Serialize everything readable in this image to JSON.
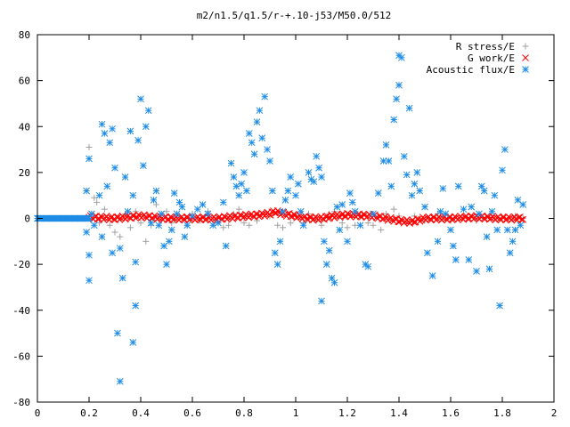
{
  "chart_data": {
    "type": "scatter",
    "title": "m2/n1.5/q1.5/r-+.10-j53/M50.0/512",
    "xlabel": "",
    "ylabel": "",
    "xlim": [
      0,
      2
    ],
    "ylim": [
      -80,
      80
    ],
    "x_ticks": [
      0,
      0.2,
      0.4,
      0.6,
      0.8,
      1,
      1.2,
      1.4,
      1.6,
      1.8,
      2
    ],
    "x_tick_labels": [
      "0",
      "0.2",
      "0.4",
      "0.6",
      "0.8",
      "1",
      "1.2",
      "1.4",
      "1.6",
      "1.8",
      "2"
    ],
    "y_ticks": [
      -80,
      -60,
      -40,
      -20,
      0,
      20,
      40,
      60,
      80
    ],
    "y_tick_labels": [
      "-80",
      "-60",
      "-40",
      "-20",
      "0",
      "20",
      "40",
      "60",
      "80"
    ],
    "grid": false,
    "legend_position": "top-right",
    "series": [
      {
        "name": "R stress/E",
        "marker": "plus",
        "color": "#a0a0a0",
        "points": [
          [
            0.2,
            31
          ],
          [
            0.21,
            2
          ],
          [
            0.22,
            9
          ],
          [
            0.23,
            7
          ],
          [
            0.24,
            -2
          ],
          [
            0.26,
            4
          ],
          [
            0.28,
            -3
          ],
          [
            0.3,
            -6
          ],
          [
            0.32,
            -8
          ],
          [
            0.34,
            2
          ],
          [
            0.36,
            -4
          ],
          [
            0.38,
            3
          ],
          [
            0.4,
            -2
          ],
          [
            0.42,
            -10
          ],
          [
            0.44,
            -3
          ],
          [
            0.46,
            6
          ],
          [
            0.48,
            -1
          ],
          [
            0.5,
            3
          ],
          [
            0.52,
            -2
          ],
          [
            0.55,
            1
          ],
          [
            0.58,
            -3
          ],
          [
            0.6,
            2
          ],
          [
            0.63,
            -1
          ],
          [
            0.66,
            3
          ],
          [
            0.7,
            -2
          ],
          [
            0.72,
            -4
          ],
          [
            0.74,
            -3
          ],
          [
            0.76,
            2
          ],
          [
            0.78,
            4
          ],
          [
            0.8,
            -2
          ],
          [
            0.82,
            -3
          ],
          [
            0.85,
            -1
          ],
          [
            0.88,
            2
          ],
          [
            0.9,
            1
          ],
          [
            0.93,
            -3
          ],
          [
            0.95,
            -4
          ],
          [
            0.98,
            -2
          ],
          [
            1.0,
            1
          ],
          [
            1.03,
            -2
          ],
          [
            1.05,
            2
          ],
          [
            1.08,
            -1
          ],
          [
            1.1,
            -3
          ],
          [
            1.13,
            2
          ],
          [
            1.15,
            3
          ],
          [
            1.18,
            -2
          ],
          [
            1.2,
            -4
          ],
          [
            1.23,
            -3
          ],
          [
            1.25,
            1
          ],
          [
            1.28,
            -2
          ],
          [
            1.3,
            -3
          ],
          [
            1.33,
            -5
          ],
          [
            1.35,
            2
          ],
          [
            1.38,
            4
          ],
          [
            1.4,
            1
          ],
          [
            1.43,
            -2
          ],
          [
            1.46,
            1
          ],
          [
            1.5,
            -1
          ],
          [
            1.55,
            2
          ],
          [
            1.6,
            -1
          ],
          [
            1.65,
            1
          ],
          [
            1.7,
            -1
          ],
          [
            1.75,
            1
          ],
          [
            1.8,
            0
          ],
          [
            1.85,
            1
          ],
          [
            1.88,
            0
          ]
        ]
      },
      {
        "name": "G work/E",
        "marker": "cross",
        "color": "#ff0000",
        "x_range": [
          0.2,
          1.88
        ],
        "count": 300,
        "profile": [
          [
            0.2,
            0.5
          ],
          [
            0.3,
            0
          ],
          [
            0.4,
            1
          ],
          [
            0.5,
            0
          ],
          [
            0.6,
            0
          ],
          [
            0.7,
            0
          ],
          [
            0.8,
            1
          ],
          [
            0.86,
            1.5
          ],
          [
            0.9,
            2
          ],
          [
            0.92,
            3
          ],
          [
            0.95,
            2
          ],
          [
            1.0,
            1
          ],
          [
            1.05,
            0
          ],
          [
            1.1,
            0
          ],
          [
            1.15,
            1
          ],
          [
            1.2,
            1.5
          ],
          [
            1.3,
            1
          ],
          [
            1.4,
            -1
          ],
          [
            1.45,
            -1.5
          ],
          [
            1.5,
            0
          ],
          [
            1.6,
            0
          ],
          [
            1.7,
            0.5
          ],
          [
            1.8,
            0
          ],
          [
            1.88,
            0
          ]
        ]
      },
      {
        "name": "Acoustic flux/E",
        "marker": "asterisk",
        "color": "#1e8ce6",
        "baseline": {
          "x_range": [
            0,
            0.2
          ],
          "y": 0,
          "count": 50
        },
        "points": [
          [
            0.19,
            12
          ],
          [
            0.2,
            26
          ],
          [
            0.2,
            -16
          ],
          [
            0.19,
            -6
          ],
          [
            0.2,
            -27
          ],
          [
            0.21,
            2
          ],
          [
            0.22,
            -3
          ],
          [
            0.24,
            10
          ],
          [
            0.25,
            41
          ],
          [
            0.26,
            37
          ],
          [
            0.25,
            -8
          ],
          [
            0.27,
            14
          ],
          [
            0.28,
            33
          ],
          [
            0.29,
            39
          ],
          [
            0.3,
            22
          ],
          [
            0.29,
            -15
          ],
          [
            0.31,
            -50
          ],
          [
            0.32,
            -71
          ],
          [
            0.33,
            -26
          ],
          [
            0.32,
            -13
          ],
          [
            0.34,
            18
          ],
          [
            0.35,
            3
          ],
          [
            0.36,
            38
          ],
          [
            0.37,
            10
          ],
          [
            0.37,
            -54
          ],
          [
            0.38,
            -38
          ],
          [
            0.38,
            -19
          ],
          [
            0.39,
            34
          ],
          [
            0.4,
            52
          ],
          [
            0.41,
            23
          ],
          [
            0.42,
            40
          ],
          [
            0.43,
            47
          ],
          [
            0.44,
            -2
          ],
          [
            0.45,
            8
          ],
          [
            0.46,
            12
          ],
          [
            0.47,
            -3
          ],
          [
            0.48,
            2
          ],
          [
            0.49,
            -12
          ],
          [
            0.5,
            -20
          ],
          [
            0.51,
            -10
          ],
          [
            0.52,
            -5
          ],
          [
            0.53,
            11
          ],
          [
            0.54,
            2
          ],
          [
            0.55,
            7
          ],
          [
            0.56,
            5
          ],
          [
            0.57,
            -8
          ],
          [
            0.58,
            -3
          ],
          [
            0.6,
            1
          ],
          [
            0.62,
            4
          ],
          [
            0.64,
            6
          ],
          [
            0.66,
            2
          ],
          [
            0.68,
            -3
          ],
          [
            0.7,
            -2
          ],
          [
            0.72,
            7
          ],
          [
            0.73,
            -12
          ],
          [
            0.75,
            24
          ],
          [
            0.76,
            18
          ],
          [
            0.77,
            14
          ],
          [
            0.78,
            10
          ],
          [
            0.79,
            15
          ],
          [
            0.8,
            20
          ],
          [
            0.81,
            12
          ],
          [
            0.82,
            37
          ],
          [
            0.83,
            33
          ],
          [
            0.84,
            28
          ],
          [
            0.85,
            42
          ],
          [
            0.86,
            47
          ],
          [
            0.87,
            35
          ],
          [
            0.88,
            53
          ],
          [
            0.89,
            30
          ],
          [
            0.9,
            25
          ],
          [
            0.91,
            12
          ],
          [
            0.92,
            -15
          ],
          [
            0.93,
            -20
          ],
          [
            0.94,
            -10
          ],
          [
            0.95,
            3
          ],
          [
            0.96,
            8
          ],
          [
            0.97,
            12
          ],
          [
            0.98,
            18
          ],
          [
            1.0,
            10
          ],
          [
            1.01,
            15
          ],
          [
            1.02,
            3
          ],
          [
            1.03,
            -3
          ],
          [
            1.05,
            20
          ],
          [
            1.06,
            17
          ],
          [
            1.07,
            16
          ],
          [
            1.08,
            27
          ],
          [
            1.09,
            22
          ],
          [
            1.1,
            18
          ],
          [
            1.1,
            -36
          ],
          [
            1.11,
            -10
          ],
          [
            1.12,
            -20
          ],
          [
            1.13,
            -14
          ],
          [
            1.14,
            -26
          ],
          [
            1.15,
            -28
          ],
          [
            1.16,
            5
          ],
          [
            1.17,
            -5
          ],
          [
            1.18,
            6
          ],
          [
            1.2,
            -10
          ],
          [
            1.21,
            11
          ],
          [
            1.22,
            7
          ],
          [
            1.23,
            3
          ],
          [
            1.25,
            -3
          ],
          [
            1.27,
            -20
          ],
          [
            1.28,
            -21
          ],
          [
            1.3,
            2
          ],
          [
            1.32,
            11
          ],
          [
            1.34,
            25
          ],
          [
            1.35,
            32
          ],
          [
            1.36,
            25
          ],
          [
            1.37,
            14
          ],
          [
            1.38,
            43
          ],
          [
            1.39,
            52
          ],
          [
            1.4,
            58
          ],
          [
            1.4,
            71
          ],
          [
            1.41,
            70
          ],
          [
            1.42,
            27
          ],
          [
            1.43,
            19
          ],
          [
            1.44,
            48
          ],
          [
            1.45,
            10
          ],
          [
            1.46,
            15
          ],
          [
            1.47,
            20
          ],
          [
            1.48,
            12
          ],
          [
            1.5,
            5
          ],
          [
            1.51,
            -15
          ],
          [
            1.53,
            -25
          ],
          [
            1.55,
            -10
          ],
          [
            1.56,
            3
          ],
          [
            1.57,
            13
          ],
          [
            1.58,
            2
          ],
          [
            1.6,
            -5
          ],
          [
            1.61,
            -12
          ],
          [
            1.62,
            -18
          ],
          [
            1.63,
            14
          ],
          [
            1.65,
            4
          ],
          [
            1.67,
            -18
          ],
          [
            1.68,
            5
          ],
          [
            1.7,
            -23
          ],
          [
            1.71,
            2
          ],
          [
            1.72,
            14
          ],
          [
            1.73,
            12
          ],
          [
            1.74,
            -8
          ],
          [
            1.75,
            -22
          ],
          [
            1.76,
            3
          ],
          [
            1.77,
            10
          ],
          [
            1.78,
            -5
          ],
          [
            1.79,
            -38
          ],
          [
            1.8,
            21
          ],
          [
            1.81,
            30
          ],
          [
            1.82,
            -5
          ],
          [
            1.83,
            -15
          ],
          [
            1.84,
            -10
          ],
          [
            1.85,
            -5
          ],
          [
            1.86,
            8
          ],
          [
            1.87,
            -3
          ],
          [
            1.88,
            6
          ]
        ]
      }
    ]
  }
}
